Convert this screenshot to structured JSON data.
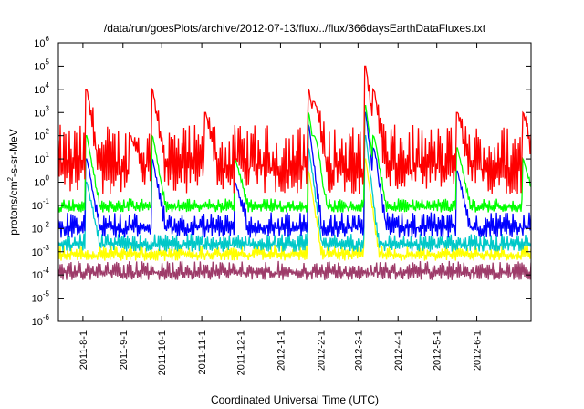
{
  "chart_data": {
    "type": "line",
    "title": "/data/run/goesPlots/archive/2012-07-13/flux/../flux/366daysEarthDataFluxes.txt",
    "xlabel": "Coordinated Universal Time (UTC)",
    "ylabel_parts": [
      "protons/cm",
      "2",
      "-s-sr-MeV"
    ],
    "yscale": "log",
    "ylim": [
      1e-06,
      1000000.0
    ],
    "y_ticks": [
      {
        "base": "10",
        "exp": "-6",
        "value": 1e-06
      },
      {
        "base": "10",
        "exp": "-5",
        "value": 1e-05
      },
      {
        "base": "10",
        "exp": "-4",
        "value": 0.0001
      },
      {
        "base": "10",
        "exp": "-3",
        "value": 0.001
      },
      {
        "base": "10",
        "exp": "-2",
        "value": 0.01
      },
      {
        "base": "10",
        "exp": "-1",
        "value": 0.1
      },
      {
        "base": "10",
        "exp": "0",
        "value": 1
      },
      {
        "base": "10",
        "exp": "1",
        "value": 10
      },
      {
        "base": "10",
        "exp": "2",
        "value": 100
      },
      {
        "base": "10",
        "exp": "3",
        "value": 1000
      },
      {
        "base": "10",
        "exp": "4",
        "value": 10000
      },
      {
        "base": "10",
        "exp": "5",
        "value": 100000
      },
      {
        "base": "10",
        "exp": "6",
        "value": 1000000
      }
    ],
    "xlim": [
      "2011-07-13",
      "2012-07-13"
    ],
    "x_ticks": [
      {
        "label": "2011-8-1",
        "value": "2011-08-01"
      },
      {
        "label": "2011-9-1",
        "value": "2011-09-01"
      },
      {
        "label": "2011-10-1",
        "value": "2011-10-01"
      },
      {
        "label": "2011-11-1",
        "value": "2011-11-01"
      },
      {
        "label": "2011-12-1",
        "value": "2011-12-01"
      },
      {
        "label": "2012-1-1",
        "value": "2012-01-01"
      },
      {
        "label": "2012-2-1",
        "value": "2012-02-01"
      },
      {
        "label": "2012-3-1",
        "value": "2012-03-01"
      },
      {
        "label": "2012-4-1",
        "value": "2012-04-01"
      },
      {
        "label": "2012-5-1",
        "value": "2012-05-01"
      },
      {
        "label": "2012-6-1",
        "value": "2012-06-01"
      }
    ],
    "grid": false,
    "legend": "none",
    "series": [
      {
        "color": "#ff0000",
        "baseline_range": [
          0.3,
          300
        ],
        "peaks": [
          {
            "date": "2011-08-04",
            "value": 10000
          },
          {
            "date": "2011-09-24",
            "value": 10000
          },
          {
            "date": "2011-09-07",
            "value": 100
          },
          {
            "date": "2011-11-04",
            "value": 1000
          },
          {
            "date": "2011-11-27",
            "value": 10
          },
          {
            "date": "2012-01-23",
            "value": 10000
          },
          {
            "date": "2012-01-27",
            "value": 3000
          },
          {
            "date": "2012-03-07",
            "value": 100000
          },
          {
            "date": "2012-03-13",
            "value": 10000
          },
          {
            "date": "2012-05-17",
            "value": 1000
          },
          {
            "date": "2012-07-07",
            "value": 1000
          }
        ]
      },
      {
        "color": "#00ff00",
        "baseline_range": [
          0.05,
          0.2
        ],
        "peaks": [
          {
            "date": "2011-08-04",
            "value": 100
          },
          {
            "date": "2011-09-24",
            "value": 100
          },
          {
            "date": "2011-11-27",
            "value": 10
          },
          {
            "date": "2012-01-23",
            "value": 1000
          },
          {
            "date": "2012-01-27",
            "value": 100
          },
          {
            "date": "2012-03-07",
            "value": 2000
          },
          {
            "date": "2012-03-13",
            "value": 100
          },
          {
            "date": "2012-05-17",
            "value": 30
          },
          {
            "date": "2012-07-07",
            "value": 10
          }
        ]
      },
      {
        "color": "#0000ff",
        "baseline_range": [
          0.004,
          0.05
        ],
        "peaks": [
          {
            "date": "2011-08-04",
            "value": 10
          },
          {
            "date": "2011-09-24",
            "value": 10
          },
          {
            "date": "2011-11-27",
            "value": 1
          },
          {
            "date": "2012-01-23",
            "value": 300
          },
          {
            "date": "2012-03-07",
            "value": 1000
          },
          {
            "date": "2012-03-13",
            "value": 30
          },
          {
            "date": "2012-05-17",
            "value": 3
          }
        ]
      },
      {
        "color": "#00c8c8",
        "baseline_range": [
          0.001,
          0.006
        ],
        "peaks": [
          {
            "date": "2011-08-04",
            "value": 1
          },
          {
            "date": "2012-01-23",
            "value": 30
          },
          {
            "date": "2012-03-07",
            "value": 100
          }
        ]
      },
      {
        "color": "#ffff00",
        "baseline_range": [
          0.0004,
          0.002
        ],
        "peaks": [
          {
            "date": "2012-01-23",
            "value": 3
          },
          {
            "date": "2012-03-07",
            "value": 10
          }
        ]
      },
      {
        "color": "#9e3c6a",
        "baseline_range": [
          6e-05,
          0.0004
        ],
        "peaks": []
      }
    ]
  }
}
